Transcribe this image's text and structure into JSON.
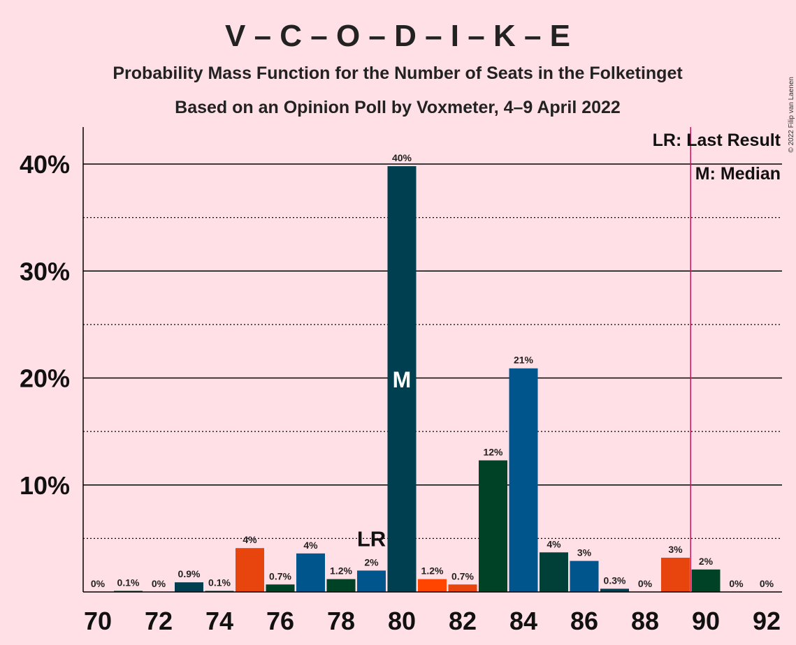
{
  "title": "V – C – O – D – I – K – E",
  "subtitle1": "Probability Mass Function for the Number of Seats in the Folketinget",
  "subtitle2": "Based on an Opinion Poll by Voxmeter, 4–9 April 2022",
  "copyright": "© 2022 Filip van Laenen",
  "legend": {
    "lr": "LR: Last Result",
    "m": "M: Median"
  },
  "markers": {
    "lr_label": "LR",
    "median_label": "M",
    "last_result_line": 89.5,
    "lr_bar": 79,
    "median_bar": 80
  },
  "colors": {
    "background": "#FFE0E6",
    "red": "#E8450E",
    "green": "#004225",
    "blue": "#00558C",
    "teal": "#003F4F",
    "darkteal": "#004038",
    "last_result_line": "#C2185B"
  },
  "chart_data": {
    "type": "bar",
    "xlabel": "",
    "ylabel": "",
    "ylim": [
      0,
      43
    ],
    "x_ticks": [
      "70",
      "72",
      "74",
      "76",
      "78",
      "80",
      "82",
      "84",
      "86",
      "88",
      "90",
      "92"
    ],
    "y_ticks": [
      "10%",
      "20%",
      "30%",
      "40%"
    ],
    "grid": "solid lines at 10%, 20%, 30%, 40%; dotted lines at 5%, 15%, 25%, 35%",
    "legend_position": "top-right",
    "categories": [
      70,
      71,
      72,
      73,
      74,
      75,
      76,
      77,
      78,
      79,
      80,
      81,
      82,
      83,
      84,
      85,
      86,
      87,
      88,
      89,
      90,
      91,
      92
    ],
    "values": [
      0,
      0.1,
      0,
      0.9,
      0.1,
      4.1,
      0.7,
      3.6,
      1.2,
      2.0,
      39.8,
      1.2,
      0.7,
      12.3,
      20.9,
      3.7,
      2.9,
      0.3,
      0,
      3.2,
      2.1,
      0,
      0
    ],
    "labels": [
      "0%",
      "0.1%",
      "0%",
      "0.9%",
      "0.1%",
      "4%",
      "0.7%",
      "4%",
      "1.2%",
      "2%",
      "40%",
      "1.2%",
      "0.7%",
      "12%",
      "21%",
      "4%",
      "3%",
      "0.3%",
      "0%",
      "3%",
      "2%",
      "0%",
      "0%"
    ],
    "bar_colors": [
      "#E8450E",
      "#004225",
      "#00558C",
      "#003F4F",
      "#004038",
      "#E8450E",
      "#004225",
      "#00558C",
      "#004225",
      "#00558C",
      "#003F4F",
      "#FF4500",
      "#E8450E",
      "#004225",
      "#00558C",
      "#004038",
      "#00558C",
      "#003F4F",
      "#004038",
      "#E8450E",
      "#004225",
      "#00558C",
      "#003F4F"
    ]
  }
}
